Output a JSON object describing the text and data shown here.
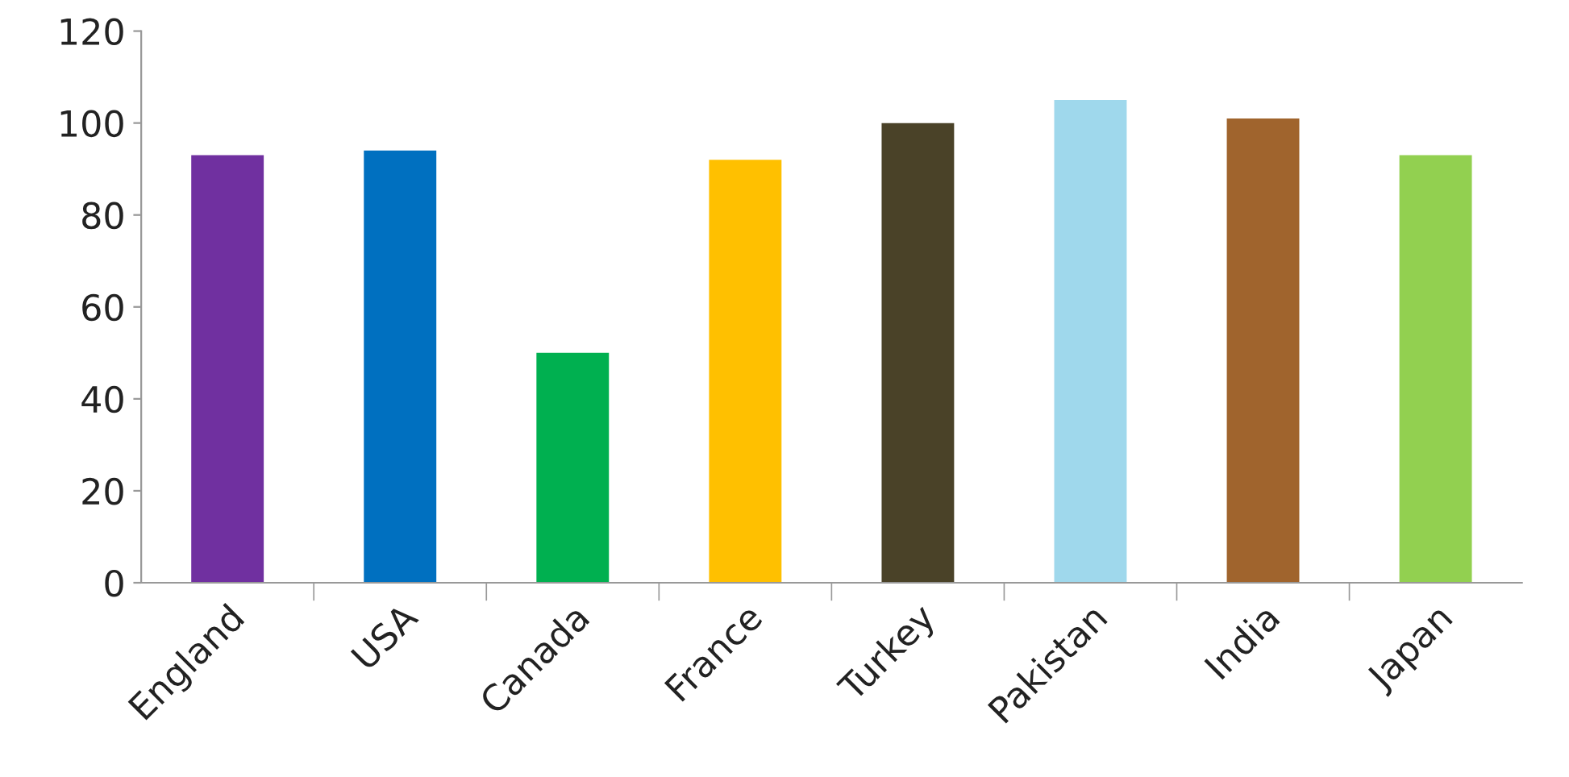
{
  "chart_data": {
    "type": "bar",
    "categories": [
      "England",
      "USA",
      "Canada",
      "France",
      "Turkey",
      "Pakistan",
      "India",
      "Japan"
    ],
    "values": [
      93,
      94,
      50,
      92,
      100,
      105,
      101,
      93
    ],
    "colors": [
      "#7030a0",
      "#0070c0",
      "#00b050",
      "#ffc000",
      "#4a4228",
      "#9fd8ec",
      "#a0642d",
      "#92d050"
    ],
    "ylim": [
      0,
      120
    ],
    "yticks": [
      0,
      20,
      40,
      60,
      80,
      100,
      120
    ],
    "grid": false
  }
}
